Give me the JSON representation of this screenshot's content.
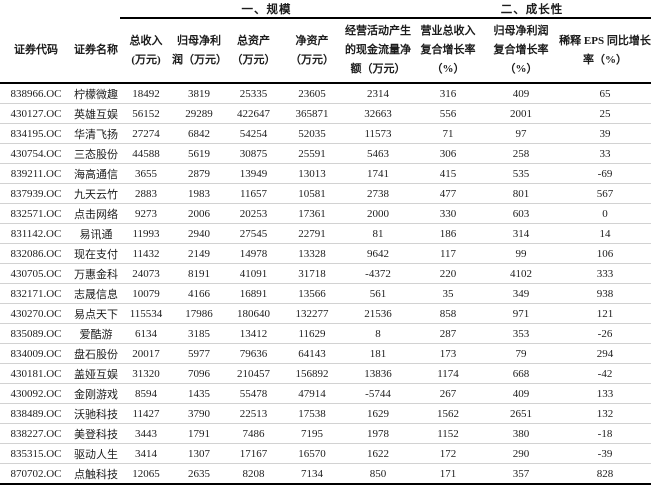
{
  "table": {
    "group_headers": [
      {
        "label": "",
        "colspan": 2
      },
      {
        "label": "一、规模",
        "colspan": 5
      },
      {
        "label": "二、成长性",
        "colspan": 3
      }
    ],
    "columns": [
      {
        "id": "security-code",
        "lines": [
          "证券代码"
        ]
      },
      {
        "id": "security-name",
        "lines": [
          "证券名称"
        ]
      },
      {
        "id": "total-revenue",
        "lines": [
          "总收入",
          "(万元)"
        ]
      },
      {
        "id": "net-profit",
        "lines": [
          "归母净利",
          "润（万元）"
        ]
      },
      {
        "id": "total-assets",
        "lines": [
          "总资产",
          "（万元）"
        ]
      },
      {
        "id": "net-assets",
        "lines": [
          "净资产",
          "（万元）"
        ]
      },
      {
        "id": "operating-cash-flow",
        "lines": [
          "经营活动产生",
          "的现金流量净",
          "额（万元）"
        ]
      },
      {
        "id": "revenue-cagr",
        "lines": [
          "营业总收入",
          "复合增长率",
          "（%）"
        ]
      },
      {
        "id": "net-profit-cagr",
        "lines": [
          "归母净利润",
          "复合增长率",
          "（%）"
        ]
      },
      {
        "id": "eps-yoy-growth",
        "lines": [
          "稀释 EPS 同比增长",
          "率（%）"
        ]
      }
    ],
    "rows": [
      [
        "838966.OC",
        "柠檬微趣",
        "18492",
        "3819",
        "25335",
        "23605",
        "2314",
        "316",
        "409",
        "65"
      ],
      [
        "430127.OC",
        "英雄互娱",
        "56152",
        "29289",
        "422647",
        "365871",
        "32663",
        "556",
        "2001",
        "25"
      ],
      [
        "834195.OC",
        "华清飞扬",
        "27274",
        "6842",
        "54254",
        "52035",
        "11573",
        "71",
        "97",
        "39"
      ],
      [
        "430754.OC",
        "三态股份",
        "44588",
        "5619",
        "30875",
        "25591",
        "5463",
        "306",
        "258",
        "33"
      ],
      [
        "839211.OC",
        "海高通信",
        "3655",
        "2879",
        "13949",
        "13013",
        "1741",
        "415",
        "535",
        "-69"
      ],
      [
        "837939.OC",
        "九天云竹",
        "2883",
        "1983",
        "11657",
        "10581",
        "2738",
        "477",
        "801",
        "567"
      ],
      [
        "832571.OC",
        "点击网络",
        "9273",
        "2006",
        "20253",
        "17361",
        "2000",
        "330",
        "603",
        "0"
      ],
      [
        "831142.OC",
        "易讯通",
        "11993",
        "2940",
        "27545",
        "22791",
        "81",
        "186",
        "314",
        "14"
      ],
      [
        "832086.OC",
        "现在支付",
        "11432",
        "2149",
        "14978",
        "13328",
        "9642",
        "117",
        "99",
        "106"
      ],
      [
        "430705.OC",
        "万惠金科",
        "24073",
        "8191",
        "41091",
        "31718",
        "-4372",
        "220",
        "4102",
        "333"
      ],
      [
        "832171.OC",
        "志晟信息",
        "10079",
        "4166",
        "16891",
        "13566",
        "561",
        "35",
        "349",
        "938"
      ],
      [
        "430270.OC",
        "易点天下",
        "115534",
        "17986",
        "180640",
        "132277",
        "21536",
        "858",
        "971",
        "121"
      ],
      [
        "835089.OC",
        "爱酷游",
        "6134",
        "3185",
        "13412",
        "11629",
        "8",
        "287",
        "353",
        "-26"
      ],
      [
        "834009.OC",
        "盘石股份",
        "20017",
        "5977",
        "79636",
        "64143",
        "181",
        "173",
        "79",
        "294"
      ],
      [
        "430181.OC",
        "盖娅互娱",
        "31320",
        "7096",
        "210457",
        "156892",
        "13836",
        "1174",
        "668",
        "-42"
      ],
      [
        "430092.OC",
        "金刚游戏",
        "8594",
        "1435",
        "55478",
        "47914",
        "-5744",
        "267",
        "409",
        "133"
      ],
      [
        "838489.OC",
        "沃驰科技",
        "11427",
        "3790",
        "22513",
        "17538",
        "1629",
        "1562",
        "2651",
        "132"
      ],
      [
        "838227.OC",
        "美登科技",
        "3443",
        "1791",
        "7486",
        "7195",
        "1978",
        "1152",
        "380",
        "-18"
      ],
      [
        "835315.OC",
        "驱动人生",
        "3414",
        "1307",
        "17167",
        "16570",
        "1622",
        "172",
        "290",
        "-39"
      ],
      [
        "870702.OC",
        "点触科技",
        "12065",
        "2635",
        "8208",
        "7134",
        "850",
        "171",
        "357",
        "828"
      ]
    ]
  }
}
